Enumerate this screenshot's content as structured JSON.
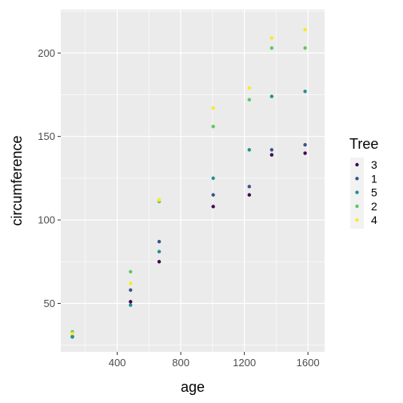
{
  "chart_data": {
    "type": "scatter",
    "xlabel": "age",
    "ylabel": "circumference",
    "xlim": [
      45,
      1705
    ],
    "ylim": [
      21,
      226
    ],
    "xticks": [
      400,
      800,
      1200,
      1600
    ],
    "yticks": [
      50,
      100,
      150,
      200
    ],
    "grid": true,
    "legend": {
      "title": "Tree",
      "position": "right"
    },
    "series": [
      {
        "name": "3",
        "color": "#440154",
        "points": [
          [
            118,
            30
          ],
          [
            484,
            51
          ],
          [
            664,
            75
          ],
          [
            1004,
            108
          ],
          [
            1231,
            115
          ],
          [
            1372,
            139
          ],
          [
            1582,
            140
          ]
        ]
      },
      {
        "name": "1",
        "color": "#3B528B",
        "points": [
          [
            118,
            30
          ],
          [
            484,
            58
          ],
          [
            664,
            87
          ],
          [
            1004,
            115
          ],
          [
            1231,
            120
          ],
          [
            1372,
            142
          ],
          [
            1582,
            145
          ]
        ]
      },
      {
        "name": "5",
        "color": "#21908C",
        "points": [
          [
            118,
            30
          ],
          [
            484,
            49
          ],
          [
            664,
            81
          ],
          [
            1004,
            125
          ],
          [
            1231,
            142
          ],
          [
            1372,
            174
          ],
          [
            1582,
            177
          ]
        ]
      },
      {
        "name": "2",
        "color": "#5DC863",
        "points": [
          [
            118,
            33
          ],
          [
            484,
            69
          ],
          [
            664,
            111
          ],
          [
            1004,
            156
          ],
          [
            1231,
            172
          ],
          [
            1372,
            203
          ],
          [
            1582,
            203
          ]
        ]
      },
      {
        "name": "4",
        "color": "#FDE725",
        "points": [
          [
            118,
            32
          ],
          [
            484,
            62
          ],
          [
            664,
            112
          ],
          [
            1004,
            167
          ],
          [
            1231,
            179
          ],
          [
            1372,
            209
          ],
          [
            1582,
            214
          ]
        ]
      }
    ]
  }
}
